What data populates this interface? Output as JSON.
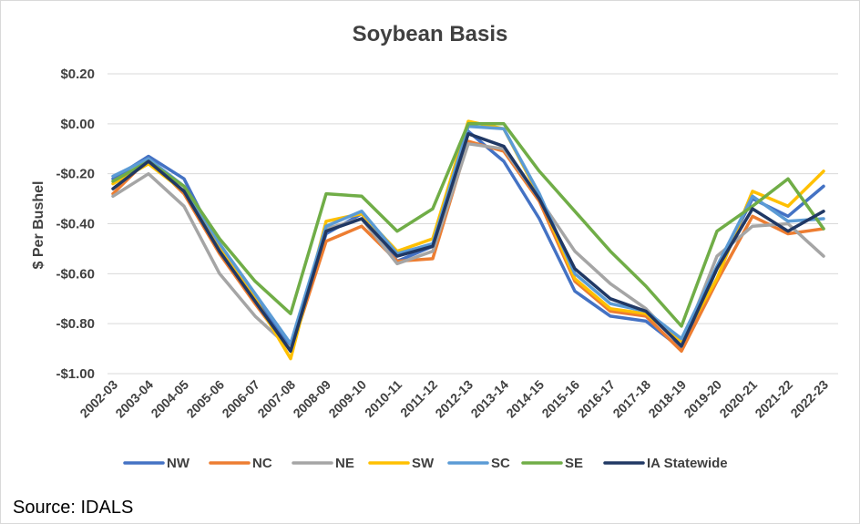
{
  "chart_data": {
    "type": "line",
    "title": "Soybean Basis",
    "ylabel": "$ Per Bushel",
    "xlabel": "",
    "ylim": [
      -1.0,
      0.2
    ],
    "yticks": [
      0.2,
      0.0,
      -0.2,
      -0.4,
      -0.6,
      -0.8,
      -1.0
    ],
    "ytick_labels": [
      "$0.20",
      "$0.00",
      "-$0.20",
      "-$0.40",
      "-$0.60",
      "-$0.80",
      "-$1.00"
    ],
    "grid": true,
    "legend_position": "bottom",
    "categories": [
      "2002-03",
      "2003-04",
      "2004-05",
      "2005-06",
      "2006-07",
      "2007-08",
      "2008-09",
      "2009-10",
      "2010-11",
      "2011-12",
      "2012-13",
      "2013-14",
      "2014-15",
      "2015-16",
      "2016-17",
      "2017-18",
      "2018-19",
      "2019-20",
      "2020-21",
      "2021-22",
      "2022-23"
    ],
    "series": [
      {
        "name": "NW",
        "color": "#4472C4",
        "values": [
          -0.22,
          -0.13,
          -0.22,
          -0.5,
          -0.7,
          -0.89,
          -0.44,
          -0.36,
          -0.55,
          -0.49,
          -0.03,
          -0.15,
          -0.38,
          -0.67,
          -0.77,
          -0.79,
          -0.9,
          -0.58,
          -0.3,
          -0.37,
          -0.25
        ]
      },
      {
        "name": "NC",
        "color": "#ED7D31",
        "values": [
          -0.28,
          -0.14,
          -0.28,
          -0.52,
          -0.72,
          -0.91,
          -0.47,
          -0.41,
          -0.55,
          -0.54,
          -0.07,
          -0.11,
          -0.31,
          -0.63,
          -0.75,
          -0.77,
          -0.91,
          -0.63,
          -0.37,
          -0.44,
          -0.42
        ]
      },
      {
        "name": "NE",
        "color": "#A5A5A5",
        "values": [
          -0.29,
          -0.2,
          -0.33,
          -0.6,
          -0.77,
          -0.9,
          -0.42,
          -0.38,
          -0.56,
          -0.51,
          -0.08,
          -0.1,
          -0.3,
          -0.51,
          -0.64,
          -0.74,
          -0.89,
          -0.53,
          -0.41,
          -0.4,
          -0.53
        ]
      },
      {
        "name": "SW",
        "color": "#FFC000",
        "values": [
          -0.24,
          -0.16,
          -0.27,
          -0.5,
          -0.7,
          -0.94,
          -0.39,
          -0.36,
          -0.51,
          -0.46,
          0.01,
          -0.02,
          -0.29,
          -0.62,
          -0.74,
          -0.76,
          -0.87,
          -0.62,
          -0.27,
          -0.33,
          -0.19
        ]
      },
      {
        "name": "SC",
        "color": "#5B9BD5",
        "values": [
          -0.21,
          -0.14,
          -0.25,
          -0.48,
          -0.68,
          -0.88,
          -0.41,
          -0.35,
          -0.52,
          -0.48,
          -0.01,
          -0.02,
          -0.28,
          -0.6,
          -0.72,
          -0.75,
          -0.86,
          -0.57,
          -0.29,
          -0.39,
          -0.38
        ]
      },
      {
        "name": "SE",
        "color": "#70AD47",
        "values": [
          -0.23,
          -0.15,
          -0.25,
          -0.46,
          -0.63,
          -0.76,
          -0.28,
          -0.29,
          -0.43,
          -0.34,
          0.0,
          0.0,
          -0.19,
          -0.35,
          -0.51,
          -0.65,
          -0.81,
          -0.43,
          -0.33,
          -0.22,
          -0.42
        ]
      },
      {
        "name": "IA Statewide",
        "color": "#203864",
        "values": [
          -0.26,
          -0.15,
          -0.27,
          -0.51,
          -0.71,
          -0.91,
          -0.43,
          -0.38,
          -0.53,
          -0.49,
          -0.04,
          -0.09,
          -0.3,
          -0.58,
          -0.7,
          -0.75,
          -0.89,
          -0.58,
          -0.34,
          -0.43,
          -0.35
        ]
      }
    ]
  },
  "source": "Source: IDALS"
}
